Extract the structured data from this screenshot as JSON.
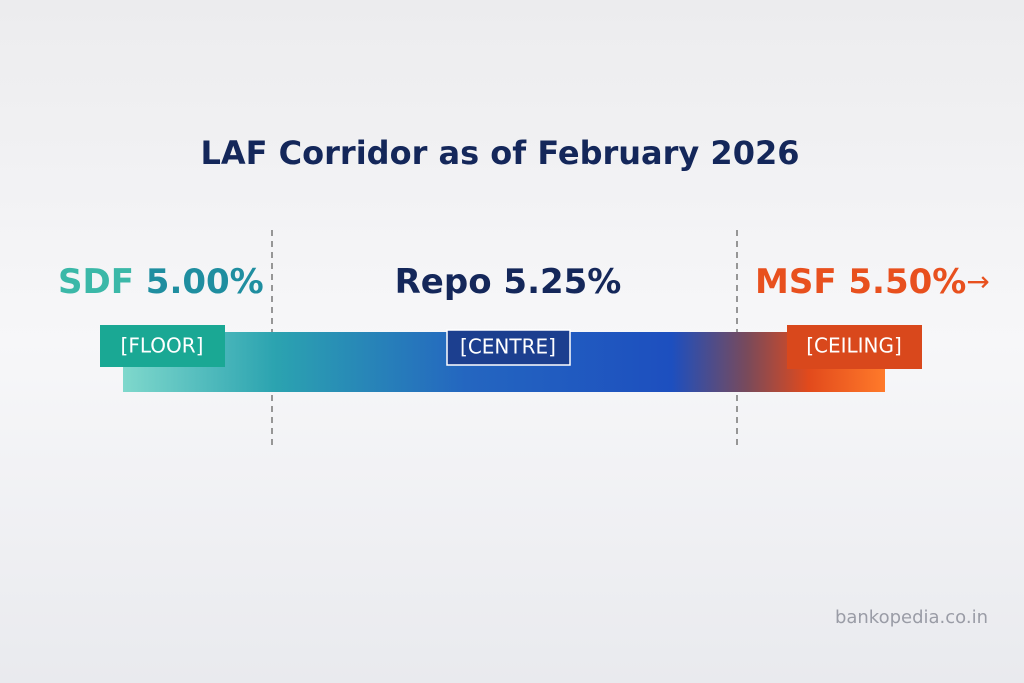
{
  "title": "LAF Corridor as of February 2026",
  "rates": [
    {
      "name": "SDF",
      "value": "5.00%",
      "tag": "[FLOOR]"
    },
    {
      "name": "Repo",
      "value": "5.25%",
      "tag": "[CENTRE]"
    },
    {
      "name": "MSF",
      "value": "5.50%",
      "tag": "[CEILING]"
    }
  ],
  "arrow": "→",
  "watermark": "bankopedia.co.in"
}
